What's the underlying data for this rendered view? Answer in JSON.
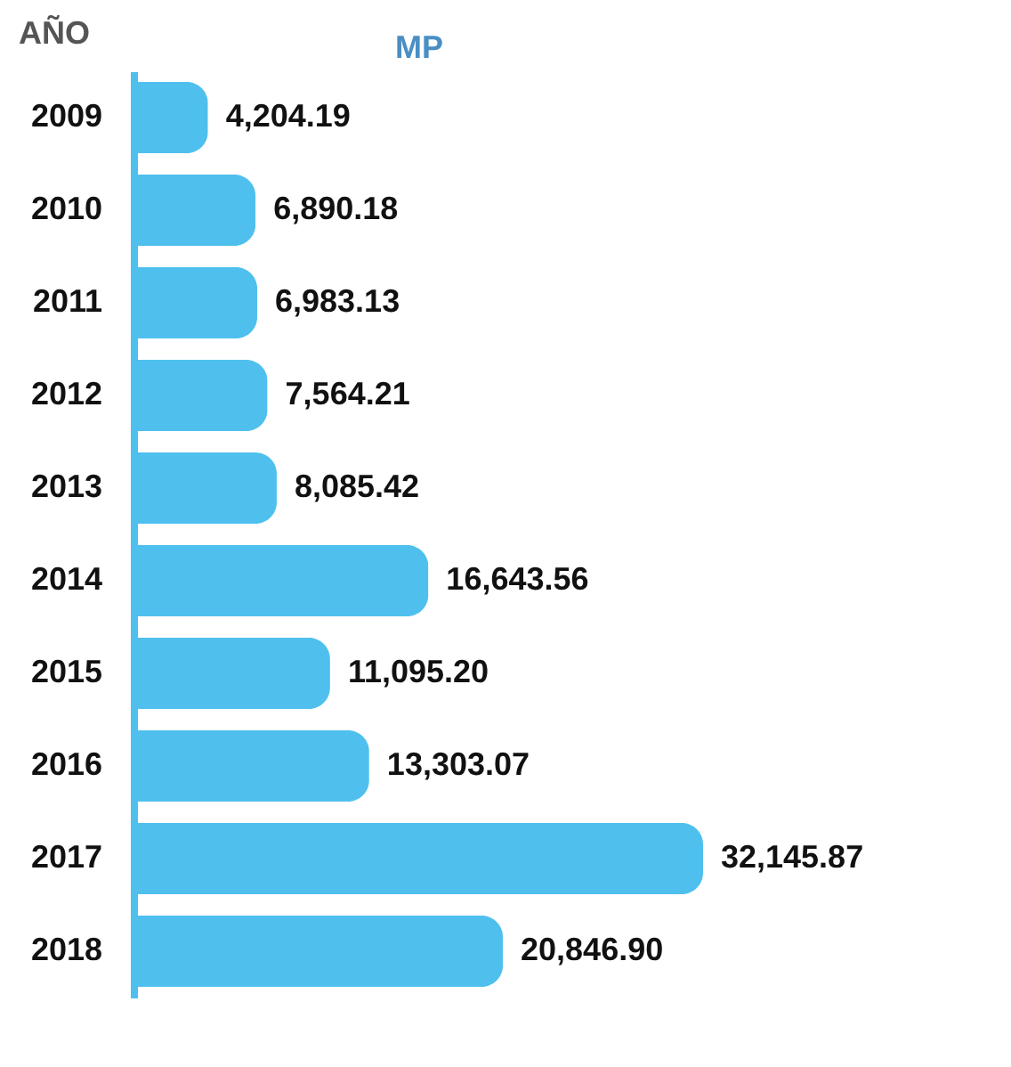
{
  "chart_data": {
    "type": "bar",
    "orientation": "horizontal",
    "ylabel": "AÑO",
    "xlabel": "MP",
    "categories": [
      "2009",
      "2010",
      "2011",
      "2012",
      "2013",
      "2014",
      "2015",
      "2016",
      "2017",
      "2018"
    ],
    "values": [
      4204.19,
      6890.18,
      6983.13,
      7564.21,
      8085.42,
      16643.56,
      11095.2,
      13303.07,
      32145.87,
      20846.9
    ],
    "value_labels": [
      "4,204.19",
      "6,890.18",
      "6,983.13",
      "7,564.21",
      "8,085.42",
      "16,643.56",
      "11,095.20",
      "13,303.07",
      "32,145.87",
      "20,846.90"
    ],
    "color": "#4fc0ee"
  }
}
